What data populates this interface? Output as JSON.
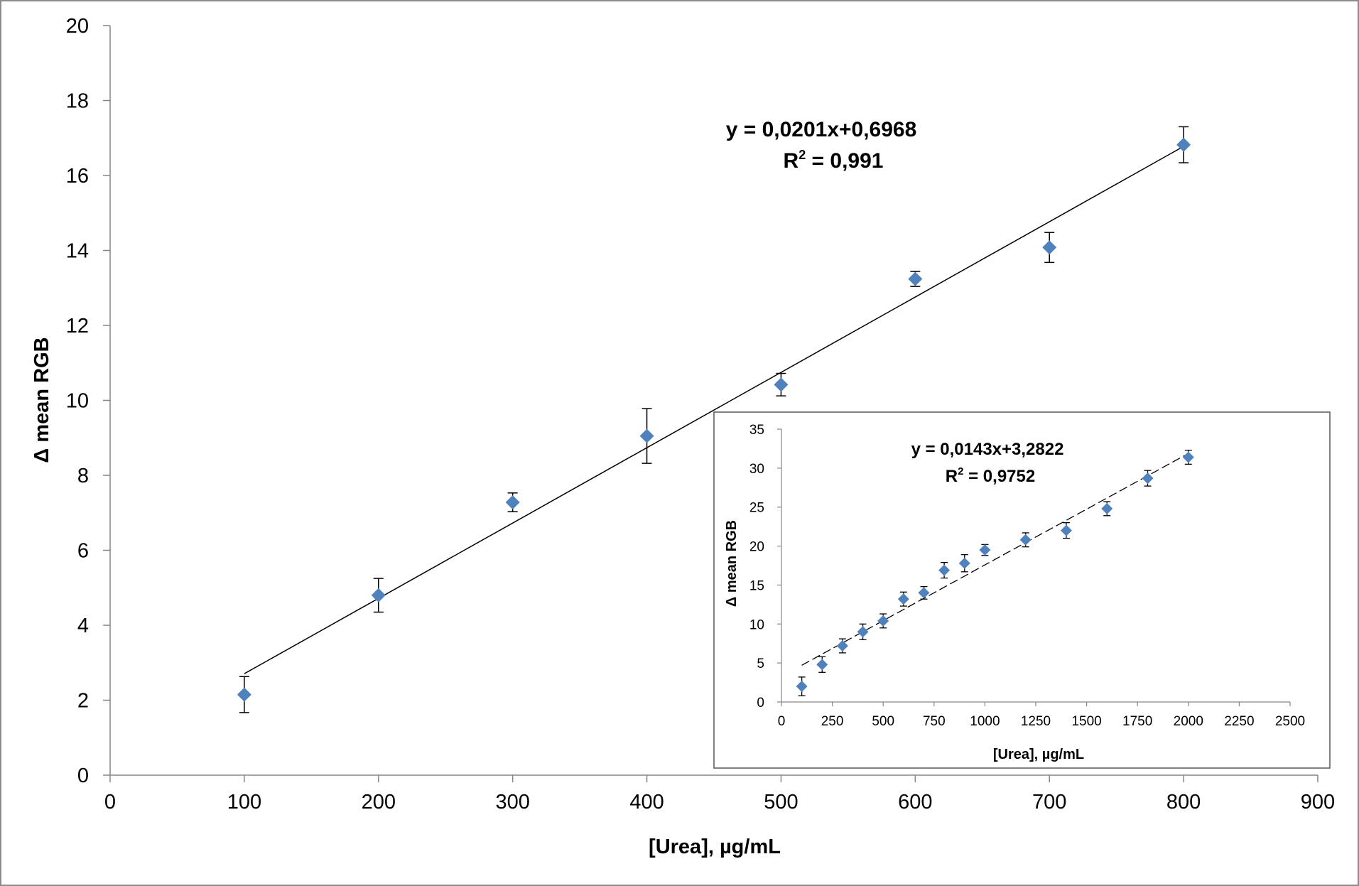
{
  "chart_data": [
    {
      "type": "scatter",
      "role": "main",
      "title": "",
      "xlabel": "[Urea], µg/mL",
      "ylabel": "Δ mean RGB",
      "xlim": [
        0,
        900
      ],
      "ylim": [
        0,
        20
      ],
      "xticks": [
        "0",
        "100",
        "200",
        "300",
        "400",
        "500",
        "600",
        "700",
        "800",
        "900"
      ],
      "yticks": [
        "0",
        "2",
        "4",
        "6",
        "8",
        "10",
        "12",
        "14",
        "16",
        "18",
        "20"
      ],
      "series": [
        {
          "name": "Δ mean RGB",
          "color": "#4f81bd",
          "x": [
            100,
            200,
            300,
            400,
            500,
            600,
            700,
            800
          ],
          "y": [
            2.15,
            4.8,
            7.28,
            9.05,
            10.42,
            13.24,
            14.08,
            16.82
          ],
          "error": [
            0.48,
            0.45,
            0.25,
            0.73,
            0.3,
            0.2,
            0.4,
            0.48
          ]
        }
      ],
      "trendline": {
        "slope": 0.0201,
        "intercept": 0.6968,
        "x_range": [
          100,
          800
        ],
        "style": "solid"
      },
      "equation": "y = 0,0201x+0,6968",
      "r_squared_prefix": "R",
      "r_squared_exp": "2",
      "r_squared_value": " = 0,991",
      "grid": false,
      "legend": "none"
    },
    {
      "type": "scatter",
      "role": "inset",
      "title": "",
      "xlabel": "[Urea], µg/mL",
      "ylabel": "Δ mean RGB",
      "xlim": [
        0,
        2500
      ],
      "ylim": [
        0,
        35
      ],
      "xticks": [
        "0",
        "250",
        "500",
        "750",
        "1000",
        "1250",
        "1500",
        "1750",
        "2000",
        "2250",
        "2500"
      ],
      "yticks": [
        "0",
        "5",
        "10",
        "15",
        "20",
        "25",
        "30",
        "35"
      ],
      "series": [
        {
          "name": "Δ mean RGB",
          "color": "#4f81bd",
          "x": [
            100,
            200,
            300,
            400,
            500,
            600,
            700,
            800,
            900,
            1000,
            1200,
            1400,
            1600,
            1800,
            2000
          ],
          "y": [
            2.0,
            4.8,
            7.2,
            9.0,
            10.4,
            13.2,
            14.0,
            16.9,
            17.8,
            19.5,
            20.8,
            22.0,
            24.8,
            28.7,
            31.4
          ],
          "error": [
            1.2,
            1.0,
            0.9,
            1.0,
            0.9,
            0.9,
            0.8,
            1.0,
            1.1,
            0.7,
            0.9,
            1.0,
            0.9,
            1.0,
            0.9
          ]
        }
      ],
      "trendline": {
        "slope": 0.0143,
        "intercept": 3.2822,
        "x_range": [
          100,
          2000
        ],
        "style": "dashed"
      },
      "equation": "y = 0,0143x+3,2822",
      "r_squared_prefix": "R",
      "r_squared_exp": "2",
      "r_squared_value": " = 0,9752",
      "grid": false,
      "legend": "none"
    }
  ]
}
